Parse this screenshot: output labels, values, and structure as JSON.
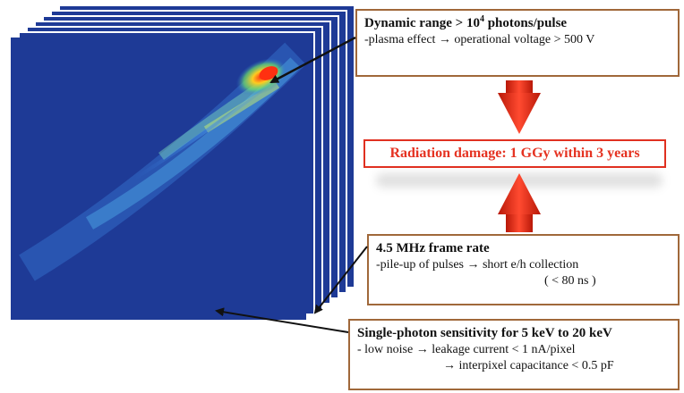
{
  "boxes": {
    "dynamic_range": {
      "title_pre": "Dynamic range > 10",
      "title_sup": "4",
      "title_post": " photons/pulse",
      "line1_a": "-plasma effect",
      "line1_b": "operational voltage > 500 V"
    },
    "radiation": {
      "title": "Radiation damage: 1 GGy within 3 years"
    },
    "frame_rate": {
      "title": "4.5 MHz frame rate",
      "line1_a": "-pile-up of pulses",
      "line1_b": "short e/h collection",
      "line2": "( < 80 ns )"
    },
    "single_photon": {
      "title": "Single-photon sensitivity for 5 keV to 20 keV",
      "line1_a": "- low noise",
      "line1_b": "leakage current < 1 nA/pixel",
      "line2": "interpixel capacitance < 0.5 pF"
    },
    "arrow_glyph": "→"
  },
  "colors": {
    "frame_bg": "#1e3a96",
    "box_border": "#a0683a",
    "radiation_text": "#e53322",
    "arrow_red": "#e02818"
  }
}
